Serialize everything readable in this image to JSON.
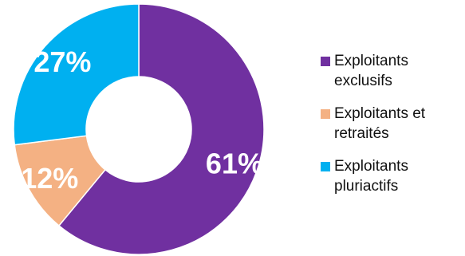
{
  "chart_data": {
    "type": "pie",
    "donut": true,
    "slices": [
      {
        "name": "Exploitants exclusifs",
        "value": 61,
        "label": "61%",
        "color": "#7030a0"
      },
      {
        "name": "Exploitants et retraités",
        "value": 12,
        "label": "12%",
        "color": "#f4b183"
      },
      {
        "name": "Exploitants pluriactifs",
        "value": 27,
        "label": "27%",
        "color": "#00b0f0"
      }
    ],
    "legend": {
      "position": "right",
      "items": [
        {
          "line1": "Exploitants",
          "line2": "exclusifs",
          "color": "#7030a0"
        },
        {
          "line1": "Exploitants et",
          "line2": "retraités",
          "color": "#f4b183"
        },
        {
          "line1": "Exploitants",
          "line2": "pluriactifs",
          "color": "#00b0f0"
        }
      ]
    }
  }
}
